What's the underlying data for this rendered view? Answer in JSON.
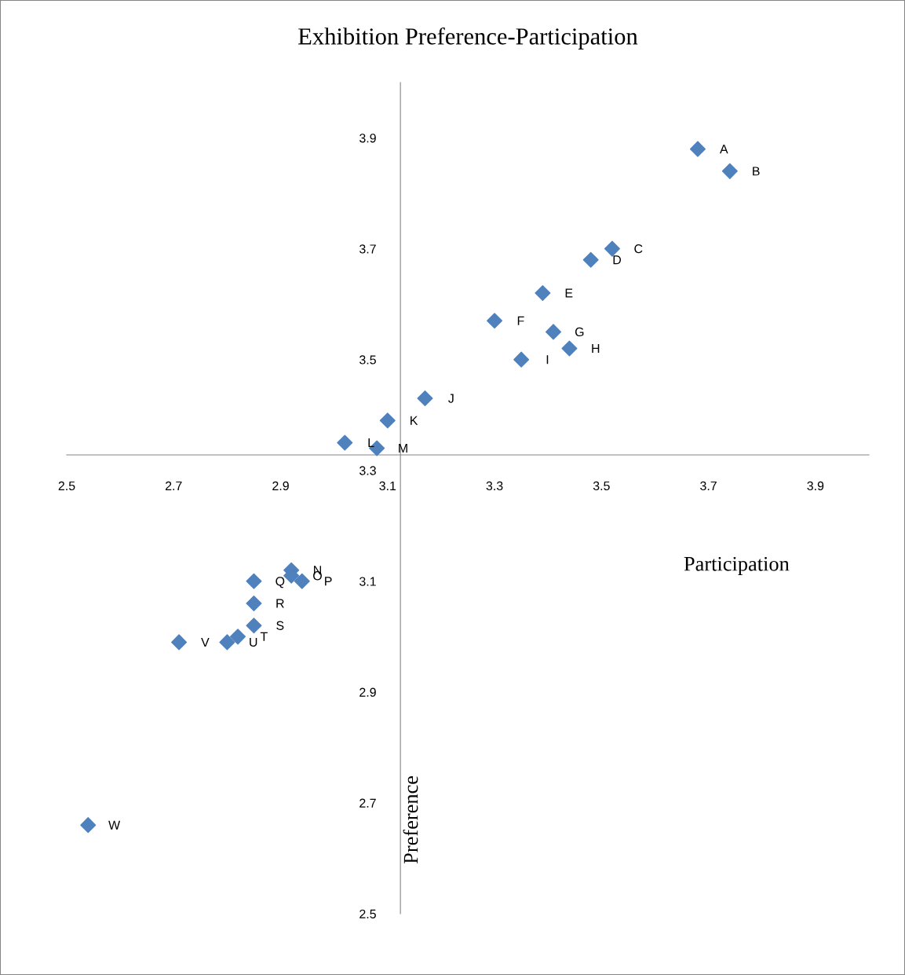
{
  "chart_data": {
    "type": "scatter",
    "title": "Exhibition Preference-Participation",
    "xlabel": "Participation",
    "ylabel": "Preference",
    "series": [
      {
        "color": "#4f81bd",
        "x": [
          3.68,
          3.74,
          3.52,
          3.48,
          3.39,
          3.3,
          3.41,
          3.44,
          3.35,
          3.17,
          3.1,
          3.02,
          3.08,
          2.92,
          2.92,
          2.94,
          2.85,
          2.85,
          2.85,
          2.82,
          2.8,
          2.71,
          2.54
        ],
        "values": [
          3.88,
          3.84,
          3.7,
          3.68,
          3.62,
          3.57,
          3.55,
          3.52,
          3.5,
          3.43,
          3.39,
          3.35,
          3.34,
          3.12,
          3.11,
          3.1,
          3.1,
          3.06,
          3.02,
          3.0,
          2.99,
          2.99,
          2.66
        ]
      }
    ],
    "annotations": [
      {
        "text": "A",
        "x": 3.68,
        "y": 3.88
      },
      {
        "text": "B",
        "x": 3.74,
        "y": 3.84
      },
      {
        "text": "C",
        "x": 3.52,
        "y": 3.7
      },
      {
        "text": "D",
        "x": 3.48,
        "y": 3.68
      },
      {
        "text": "E",
        "x": 3.39,
        "y": 3.62
      },
      {
        "text": "F",
        "x": 3.3,
        "y": 3.57
      },
      {
        "text": "G",
        "x": 3.41,
        "y": 3.55
      },
      {
        "text": "H",
        "x": 3.44,
        "y": 3.52
      },
      {
        "text": "I",
        "x": 3.35,
        "y": 3.5
      },
      {
        "text": "J",
        "x": 3.17,
        "y": 3.43
      },
      {
        "text": "K",
        "x": 3.1,
        "y": 3.39
      },
      {
        "text": "L",
        "x": 3.02,
        "y": 3.35
      },
      {
        "text": "M",
        "x": 3.08,
        "y": 3.34
      },
      {
        "text": "N",
        "x": 2.92,
        "y": 3.12
      },
      {
        "text": "O",
        "x": 2.92,
        "y": 3.11
      },
      {
        "text": "P",
        "x": 2.94,
        "y": 3.1
      },
      {
        "text": "Q",
        "x": 2.85,
        "y": 3.1
      },
      {
        "text": "R",
        "x": 2.85,
        "y": 3.06
      },
      {
        "text": "S",
        "x": 2.85,
        "y": 3.02
      },
      {
        "text": "T",
        "x": 2.82,
        "y": 3.0
      },
      {
        "text": "U",
        "x": 2.8,
        "y": 2.99
      },
      {
        "text": "V",
        "x": 2.71,
        "y": 2.99
      },
      {
        "text": "W",
        "x": 2.54,
        "y": 2.66
      }
    ],
    "xlim": [
      2.5,
      4.0
    ],
    "ylim": [
      2.5,
      4.0
    ],
    "xticks": [
      2.5,
      2.7,
      2.9,
      3.1,
      3.3,
      3.5,
      3.7,
      3.9
    ],
    "yticks": [
      2.5,
      2.7,
      2.9,
      3.1,
      3.3,
      3.5,
      3.7,
      3.9
    ],
    "marker": "diamond",
    "grid": false,
    "legend": false
  }
}
